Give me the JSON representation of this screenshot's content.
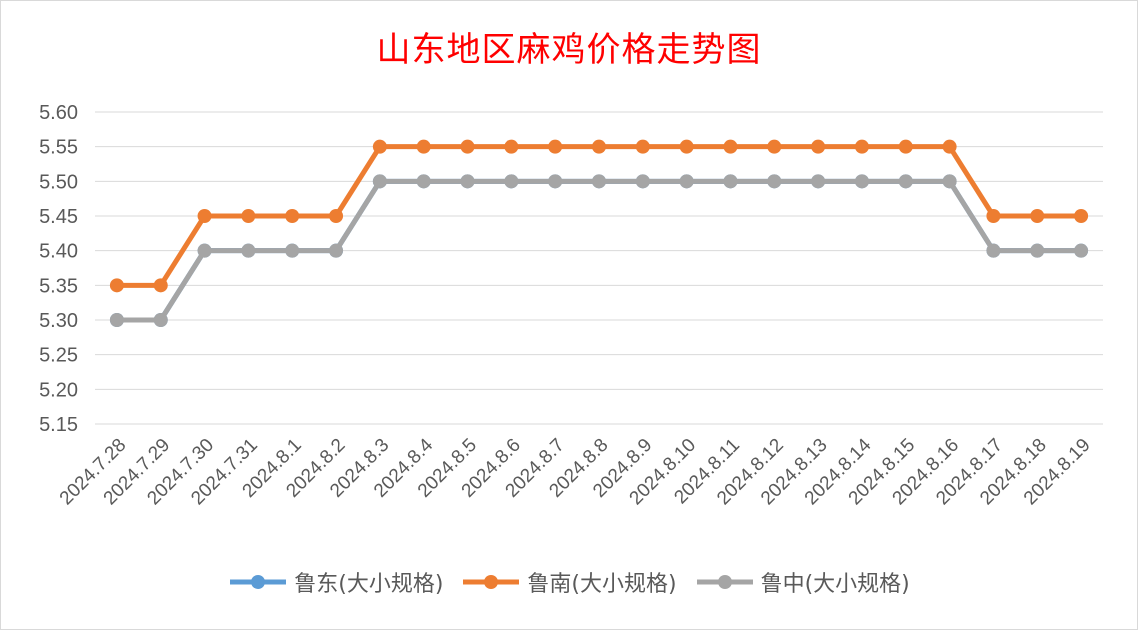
{
  "chart_data": {
    "type": "line",
    "title": "山东地区麻鸡价格走势图",
    "categories": [
      "2024.7.28",
      "2024.7.29",
      "2024.7.30",
      "2024.7.31",
      "2024.8.1",
      "2024.8.2",
      "2024.8.3",
      "2024.8.4",
      "2024.8.5",
      "2024.8.6",
      "2024.8.7",
      "2024.8.8",
      "2024.8.9",
      "2024.8.10",
      "2024.8.11",
      "2024.8.12",
      "2024.8.13",
      "2024.8.14",
      "2024.8.15",
      "2024.8.16",
      "2024.8.17",
      "2024.8.18",
      "2024.8.19"
    ],
    "series": [
      {
        "name": "鲁东(大小规格)",
        "color": "#5b9bd5",
        "values": [
          5.3,
          5.3,
          5.4,
          5.4,
          5.4,
          5.4,
          5.5,
          5.5,
          5.5,
          5.5,
          5.5,
          5.5,
          5.5,
          5.5,
          5.5,
          5.5,
          5.5,
          5.5,
          5.5,
          5.5,
          5.4,
          5.4,
          5.4
        ]
      },
      {
        "name": "鲁南(大小规格)",
        "color": "#ed7d31",
        "values": [
          5.35,
          5.35,
          5.45,
          5.45,
          5.45,
          5.45,
          5.55,
          5.55,
          5.55,
          5.55,
          5.55,
          5.55,
          5.55,
          5.55,
          5.55,
          5.55,
          5.55,
          5.55,
          5.55,
          5.55,
          5.45,
          5.45,
          5.45
        ]
      },
      {
        "name": "鲁中(大小规格)",
        "color": "#a5a5a5",
        "values": [
          5.3,
          5.3,
          5.4,
          5.4,
          5.4,
          5.4,
          5.5,
          5.5,
          5.5,
          5.5,
          5.5,
          5.5,
          5.5,
          5.5,
          5.5,
          5.5,
          5.5,
          5.5,
          5.5,
          5.5,
          5.4,
          5.4,
          5.4
        ]
      }
    ],
    "yticks": [
      "5.60",
      "5.55",
      "5.50",
      "5.45",
      "5.40",
      "5.35",
      "5.30",
      "5.25",
      "5.20",
      "5.15"
    ],
    "ylim": [
      5.15,
      5.6
    ],
    "grid": true,
    "legend_position": "bottom"
  }
}
